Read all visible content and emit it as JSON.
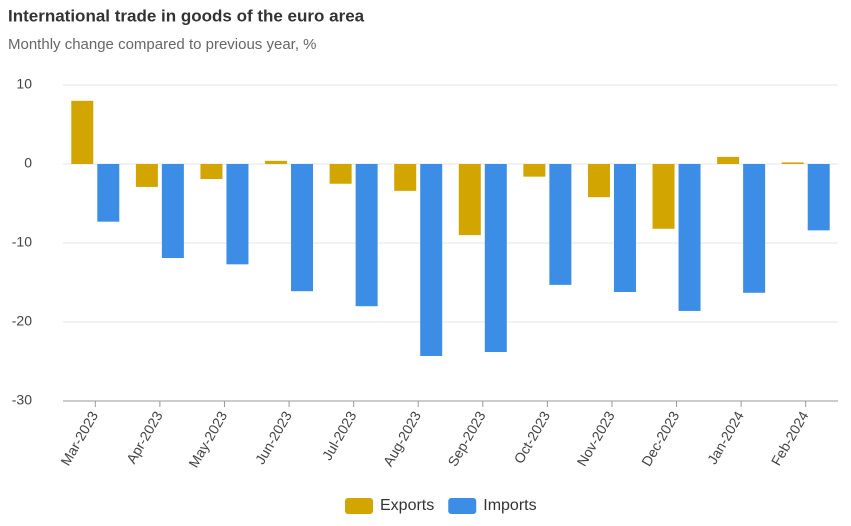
{
  "chart_data": {
    "type": "bar",
    "title": "International trade in goods of the euro area",
    "subtitle": "Monthly change compared to previous year, %",
    "categories": [
      "Mar-2023",
      "Apr-2023",
      "May-2023",
      "Jun-2023",
      "Jul-2023",
      "Aug-2023",
      "Sep-2023",
      "Oct-2023",
      "Nov-2023",
      "Dec-2023",
      "Jan-2024",
      "Feb-2024"
    ],
    "series": [
      {
        "name": "Exports",
        "color": "#d2a500",
        "values": [
          8.0,
          -2.9,
          -1.9,
          0.4,
          -2.5,
          -3.4,
          -9.0,
          -1.6,
          -4.2,
          -8.2,
          0.9,
          0.2
        ]
      },
      {
        "name": "Imports",
        "color": "#3b8de5",
        "values": [
          -7.3,
          -11.9,
          -12.7,
          -16.1,
          -18.0,
          -24.3,
          -23.8,
          -15.3,
          -16.2,
          -18.6,
          -16.3,
          -8.4
        ]
      }
    ],
    "ylim": [
      -30,
      10
    ],
    "yticks": [
      -30,
      -20,
      -10,
      0,
      10
    ],
    "grid": true,
    "legend": "bottom"
  }
}
